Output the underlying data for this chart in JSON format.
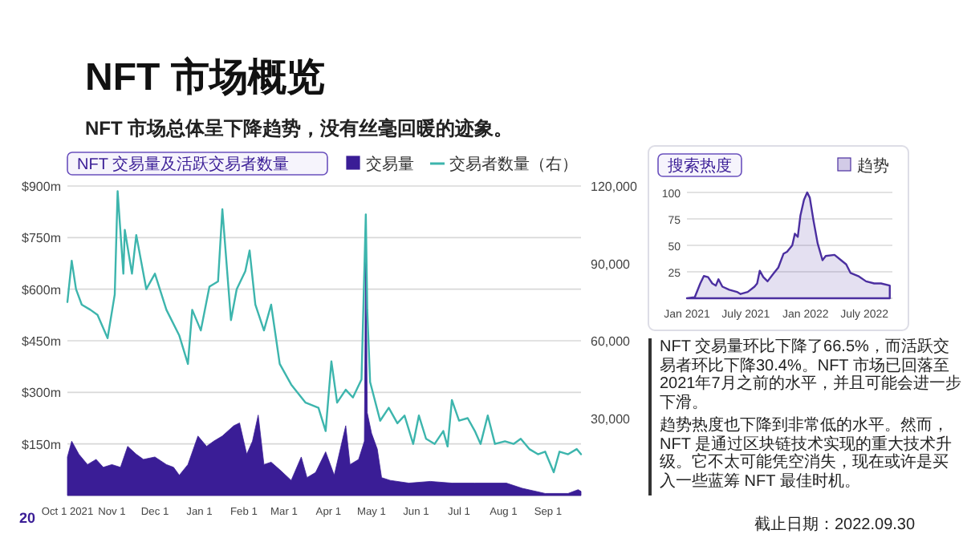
{
  "chart_data": [
    {
      "type": "other",
      "title": "NFT 市场概览",
      "subtitle": "NFT 市场总体呈下降趋势，没有丝毫回暖的迹象。",
      "annotations": [
        "20"
      ]
    },
    {
      "type": "area",
      "title": "NFT 交易量及活跃交易者数量",
      "legend": "top right",
      "grid": "y",
      "xlim": [
        "2021-10-01",
        "2022-09-24"
      ],
      "xticks": [
        {
          "value": "2021-10-01",
          "label": "Oct 1 2021"
        },
        {
          "value": "2021-11-01",
          "label": "Nov 1"
        },
        {
          "value": "2021-12-01",
          "label": "Dec 1"
        },
        {
          "value": "2022-01-01",
          "label": "Jan 1"
        },
        {
          "value": "2022-02-01",
          "label": "Feb 1"
        },
        {
          "value": "2022-03-01",
          "label": "Mar 1"
        },
        {
          "value": "2022-04-01",
          "label": "Apr 1"
        },
        {
          "value": "2022-05-01",
          "label": "May 1"
        },
        {
          "value": "2022-06-01",
          "label": "Jun 1"
        },
        {
          "value": "2022-07-01",
          "label": "Jul 1"
        },
        {
          "value": "2022-08-01",
          "label": "Aug 1"
        },
        {
          "value": "2022-09-01",
          "label": "Sep 1"
        }
      ],
      "ylim": [
        0,
        900
      ],
      "yticks": [
        {
          "value": 150,
          "label": "$150m"
        },
        {
          "value": 300,
          "label": "$300m"
        },
        {
          "value": 450,
          "label": "$450m"
        },
        {
          "value": 600,
          "label": "$600m"
        },
        {
          "value": 750,
          "label": "$750m"
        },
        {
          "value": 900,
          "label": "$900m"
        }
      ],
      "y2lim": [
        0,
        120000
      ],
      "y2ticks": [
        {
          "value": 30000,
          "label": "30,000"
        },
        {
          "value": 60000,
          "label": "60,000"
        },
        {
          "value": 90000,
          "label": "90,000"
        },
        {
          "value": 120000,
          "label": "120,000"
        }
      ],
      "series": [
        {
          "name": "交易量",
          "type": "area",
          "color": "#3a1d96",
          "x": [
            "2021-10-01",
            "2021-10-04",
            "2021-10-09",
            "2021-10-15",
            "2021-10-21",
            "2021-10-26",
            "2021-11-01",
            "2021-11-07",
            "2021-11-12",
            "2021-11-18",
            "2021-11-23",
            "2021-12-01",
            "2021-12-09",
            "2021-12-14",
            "2021-12-18",
            "2021-12-24",
            "2021-12-31",
            "2022-01-06",
            "2022-01-11",
            "2022-01-17",
            "2022-01-25",
            "2022-01-29",
            "2022-02-03",
            "2022-02-07",
            "2022-02-11",
            "2022-02-15",
            "2022-02-20",
            "2022-02-26",
            "2022-03-06",
            "2022-03-13",
            "2022-03-17",
            "2022-03-23",
            "2022-03-30",
            "2022-04-05",
            "2022-04-13",
            "2022-04-16",
            "2022-04-22",
            "2022-04-26",
            "2022-04-27",
            "2022-04-28",
            "2022-05-01",
            "2022-05-05",
            "2022-05-08",
            "2022-05-14",
            "2022-05-27",
            "2022-06-11",
            "2022-06-26",
            "2022-07-12",
            "2022-08-03",
            "2022-08-14",
            "2022-08-30",
            "2022-09-15",
            "2022-09-22",
            "2022-09-24"
          ],
          "values": [
            112,
            158,
            120,
            90,
            105,
            82,
            90,
            82,
            143,
            120,
            105,
            112,
            90,
            82,
            59,
            90,
            173,
            143,
            158,
            173,
            203,
            211,
            120,
            158,
            234,
            90,
            97,
            75,
            44,
            112,
            52,
            67,
            127,
            59,
            203,
            90,
            105,
            158,
            803,
            241,
            181,
            135,
            52,
            44,
            36,
            41,
            36,
            36,
            36,
            21,
            6,
            6,
            17,
            12
          ]
        },
        {
          "name": "交易者数量（右）",
          "type": "line",
          "axis": "y2",
          "color": "#3db5ad",
          "x": [
            "2021-10-01",
            "2021-10-04",
            "2021-10-07",
            "2021-10-11",
            "2021-10-17",
            "2021-10-22",
            "2021-10-29",
            "2021-11-03",
            "2021-11-05",
            "2021-11-09",
            "2021-11-10",
            "2021-11-15",
            "2021-11-18",
            "2021-11-25",
            "2021-12-01",
            "2021-12-09",
            "2021-12-18",
            "2021-12-24",
            "2021-12-27",
            "2022-01-02",
            "2022-01-08",
            "2022-01-14",
            "2022-01-17",
            "2022-01-23",
            "2022-01-27",
            "2022-02-02",
            "2022-02-05",
            "2022-02-09",
            "2022-02-15",
            "2022-02-20",
            "2022-02-26",
            "2022-03-06",
            "2022-03-16",
            "2022-03-25",
            "2022-03-30",
            "2022-04-03",
            "2022-04-07",
            "2022-04-13",
            "2022-04-18",
            "2022-04-24",
            "2022-04-27",
            "2022-04-28",
            "2022-04-30",
            "2022-05-07",
            "2022-05-13",
            "2022-05-19",
            "2022-05-24",
            "2022-05-30",
            "2022-06-03",
            "2022-06-08",
            "2022-06-14",
            "2022-06-20",
            "2022-06-23",
            "2022-06-26",
            "2022-07-01",
            "2022-07-07",
            "2022-07-12",
            "2022-07-16",
            "2022-07-21",
            "2022-07-26",
            "2022-08-02",
            "2022-08-08",
            "2022-08-13",
            "2022-08-19",
            "2022-08-25",
            "2022-08-30",
            "2022-09-05",
            "2022-09-09",
            "2022-09-15",
            "2022-09-21",
            "2022-09-24"
          ],
          "values": [
            75000,
            91000,
            80000,
            74000,
            72000,
            70000,
            61000,
            78000,
            118000,
            86000,
            103000,
            86000,
            101000,
            80000,
            86000,
            72000,
            62000,
            51000,
            72000,
            64000,
            81000,
            83000,
            111000,
            68000,
            80000,
            87000,
            95000,
            74000,
            64000,
            74000,
            51000,
            43000,
            36000,
            34000,
            25000,
            52000,
            36000,
            41000,
            38000,
            45000,
            109000,
            72000,
            44000,
            29000,
            34000,
            28000,
            31000,
            20000,
            31000,
            22000,
            20000,
            25000,
            19000,
            37000,
            29000,
            30000,
            25000,
            20000,
            31000,
            20000,
            21000,
            20000,
            22000,
            18000,
            16000,
            17000,
            9000,
            17000,
            16000,
            18000,
            16000
          ]
        }
      ]
    },
    {
      "type": "area",
      "title": "搜索热度",
      "legend": "top right",
      "grid": "y",
      "xlim": [
        "2021-01-01",
        "2022-09-25"
      ],
      "xticks": [
        {
          "value": "2021-01-01",
          "label": "Jan 2021"
        },
        {
          "value": "2021-07-01",
          "label": "July 2021"
        },
        {
          "value": "2022-01-01",
          "label": "Jan 2022"
        },
        {
          "value": "2022-07-01",
          "label": "July 2022"
        }
      ],
      "ylim": [
        0,
        100
      ],
      "yticks": [
        25,
        50,
        75,
        100
      ],
      "series": [
        {
          "name": "趋势",
          "type": "area",
          "color": "#4b2fa0",
          "x": [
            "2021-01-01",
            "2021-01-25",
            "2021-02-11",
            "2021-02-22",
            "2021-03-07",
            "2021-03-20",
            "2021-03-31",
            "2021-04-08",
            "2021-04-20",
            "2021-05-11",
            "2021-06-04",
            "2021-06-15",
            "2021-07-07",
            "2021-07-28",
            "2021-08-05",
            "2021-08-13",
            "2021-08-24",
            "2021-09-06",
            "2021-09-26",
            "2021-10-09",
            "2021-10-25",
            "2021-11-05",
            "2021-11-21",
            "2021-11-29",
            "2021-12-08",
            "2021-12-16",
            "2021-12-27",
            "2022-01-06",
            "2022-01-14",
            "2022-01-25",
            "2022-02-07",
            "2022-02-22",
            "2022-03-04",
            "2022-03-31",
            "2022-04-20",
            "2022-05-06",
            "2022-05-19",
            "2022-06-12",
            "2022-07-06",
            "2022-07-31",
            "2022-08-21",
            "2022-09-17"
          ],
          "values": [
            0,
            1,
            14,
            21,
            20,
            14,
            12,
            18,
            11,
            8,
            6,
            4,
            6,
            11,
            14,
            26,
            20,
            16,
            24,
            29,
            42,
            44,
            50,
            61,
            58,
            78,
            93,
            100,
            95,
            74,
            52,
            36,
            40,
            41,
            36,
            32,
            24,
            21,
            16,
            14,
            14,
            12
          ]
        }
      ]
    },
    {
      "type": "other",
      "annotations": [
        "NFT 交易量环比下降了66.5%，而活跃交易者环比下降30.4%。NFT 市场已回落至2021年7月之前的水平，并且可能会进一步下滑。",
        "趋势热度也下降到非常低的水平。然而，NFT 是通过区块链技术实现的重大技术升级。它不太可能凭空消失，现在或许是买入一些蓝筹 NFT 最佳时机。",
        "截止日期：2022.09.30"
      ]
    }
  ]
}
